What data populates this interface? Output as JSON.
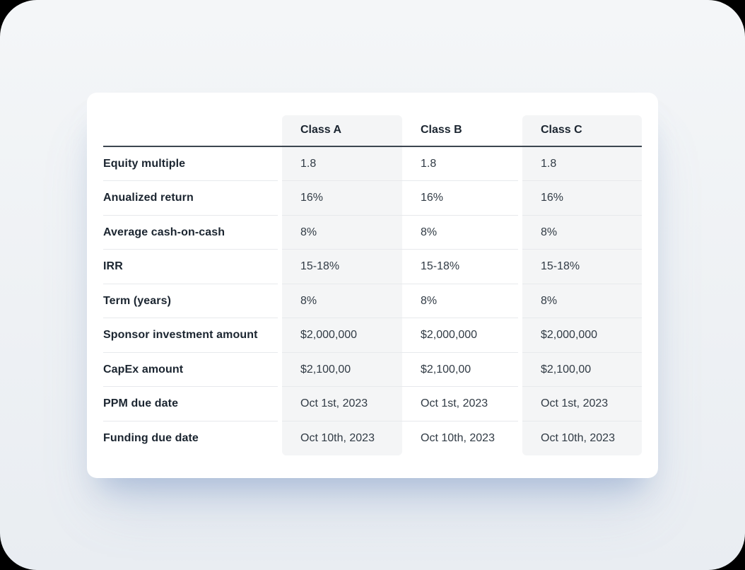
{
  "table": {
    "columns": [
      "Class A",
      "Class B",
      "Class C"
    ],
    "rows": [
      {
        "label": "Equity multiple",
        "values": [
          "1.8",
          "1.8",
          "1.8"
        ]
      },
      {
        "label": "Anualized return",
        "values": [
          "16%",
          "16%",
          "16%"
        ]
      },
      {
        "label": "Average cash-on-cash",
        "values": [
          "8%",
          "8%",
          "8%"
        ]
      },
      {
        "label": "IRR",
        "values": [
          "15-18%",
          "15-18%",
          "15-18%"
        ]
      },
      {
        "label": "Term (years)",
        "values": [
          "8%",
          "8%",
          "8%"
        ]
      },
      {
        "label": "Sponsor investment amount",
        "values": [
          "$2,000,000",
          "$2,000,000",
          "$2,000,000"
        ]
      },
      {
        "label": "CapEx amount",
        "values": [
          "$2,100,00",
          "$2,100,00",
          "$2,100,00"
        ]
      },
      {
        "label": "PPM due date",
        "values": [
          "Oct 1st, 2023",
          "Oct 1st, 2023",
          "Oct 1st, 2023"
        ]
      },
      {
        "label": "Funding due date",
        "values": [
          "Oct 10th, 2023",
          "Oct 10th, 2023",
          "Oct 10th, 2023"
        ]
      }
    ]
  },
  "colors": {
    "shaded_column_bg": "#f4f5f6",
    "header_divider": "#3c4650",
    "row_separator": "#e7e9ec",
    "card_bg": "#ffffff",
    "surface_bg": "#eef1f4",
    "label_text": "#1b2530",
    "value_text": "#313b45"
  }
}
